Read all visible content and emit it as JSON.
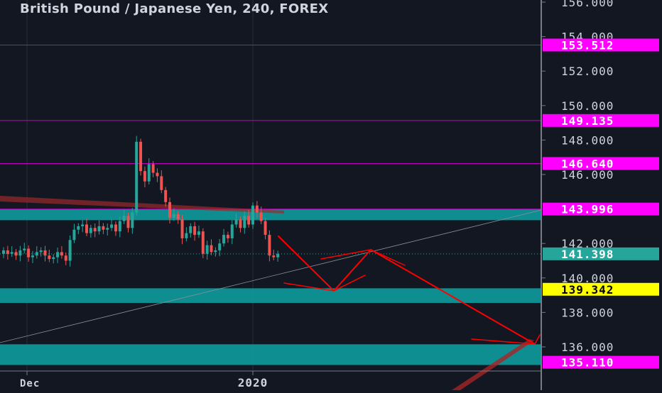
{
  "title": "British Pound / Japanese Yen, 240, FOREX",
  "colors": {
    "background": "#131722",
    "up": "#26a69a",
    "down": "#ef5350",
    "zone": "#0f9598",
    "level_line": "#c000c0",
    "level_label_bg": "#ff00ff",
    "current_label_bg": "#26a69a",
    "target_label_bg": "#ffff00",
    "drawing": "#ff0000",
    "axis_text": "#d1d4dc"
  },
  "chart_data": {
    "type": "candlestick",
    "symbol": "GBPJPY",
    "timeframe": "240",
    "ylim": [
      134.0,
      156.0
    ],
    "y_ticks": [
      "156.000",
      "154.000",
      "152.000",
      "150.000",
      "148.000",
      "146.000",
      "142.000",
      "140.000",
      "138.000",
      "136.000"
    ],
    "x_labels": [
      "Dec",
      "2020"
    ],
    "price_levels": [
      {
        "value": 153.512,
        "label": "153.512"
      },
      {
        "value": 149.135,
        "label": "149.135"
      },
      {
        "value": 146.64,
        "label": "146.640"
      },
      {
        "value": 143.996,
        "label": "143.996"
      }
    ],
    "current_price": {
      "value": 141.398,
      "label": "141.398"
    },
    "target_price": {
      "value": 139.342,
      "label": "139.342"
    },
    "bottom_level": {
      "value": 135.11,
      "label": "135.110"
    },
    "zones": [
      {
        "from": 143.35,
        "to": 144.0
      },
      {
        "from": 138.55,
        "to": 139.4
      },
      {
        "from": 134.95,
        "to": 136.15
      }
    ],
    "closes": [
      141.6,
      141.4,
      141.5,
      141.3,
      141.6,
      141.7,
      141.2,
      141.3,
      141.5,
      141.6,
      141.3,
      141.1,
      141.2,
      141.5,
      141.3,
      141.0,
      142.2,
      142.8,
      143.0,
      143.1,
      142.6,
      142.9,
      142.7,
      143.0,
      142.8,
      142.9,
      143.1,
      142.7,
      143.3,
      143.6,
      142.9,
      143.8,
      147.9,
      146.2,
      145.6,
      146.6,
      146.1,
      145.9,
      145.1,
      144.4,
      143.5,
      143.7,
      143.4,
      142.3,
      142.6,
      143.0,
      142.5,
      142.7,
      141.4,
      141.9,
      141.5,
      141.6,
      142.0,
      142.5,
      142.3,
      143.1,
      143.4,
      142.9,
      143.6,
      143.1,
      144.2,
      143.8,
      143.3,
      142.5,
      141.3,
      141.2,
      141.4
    ]
  }
}
